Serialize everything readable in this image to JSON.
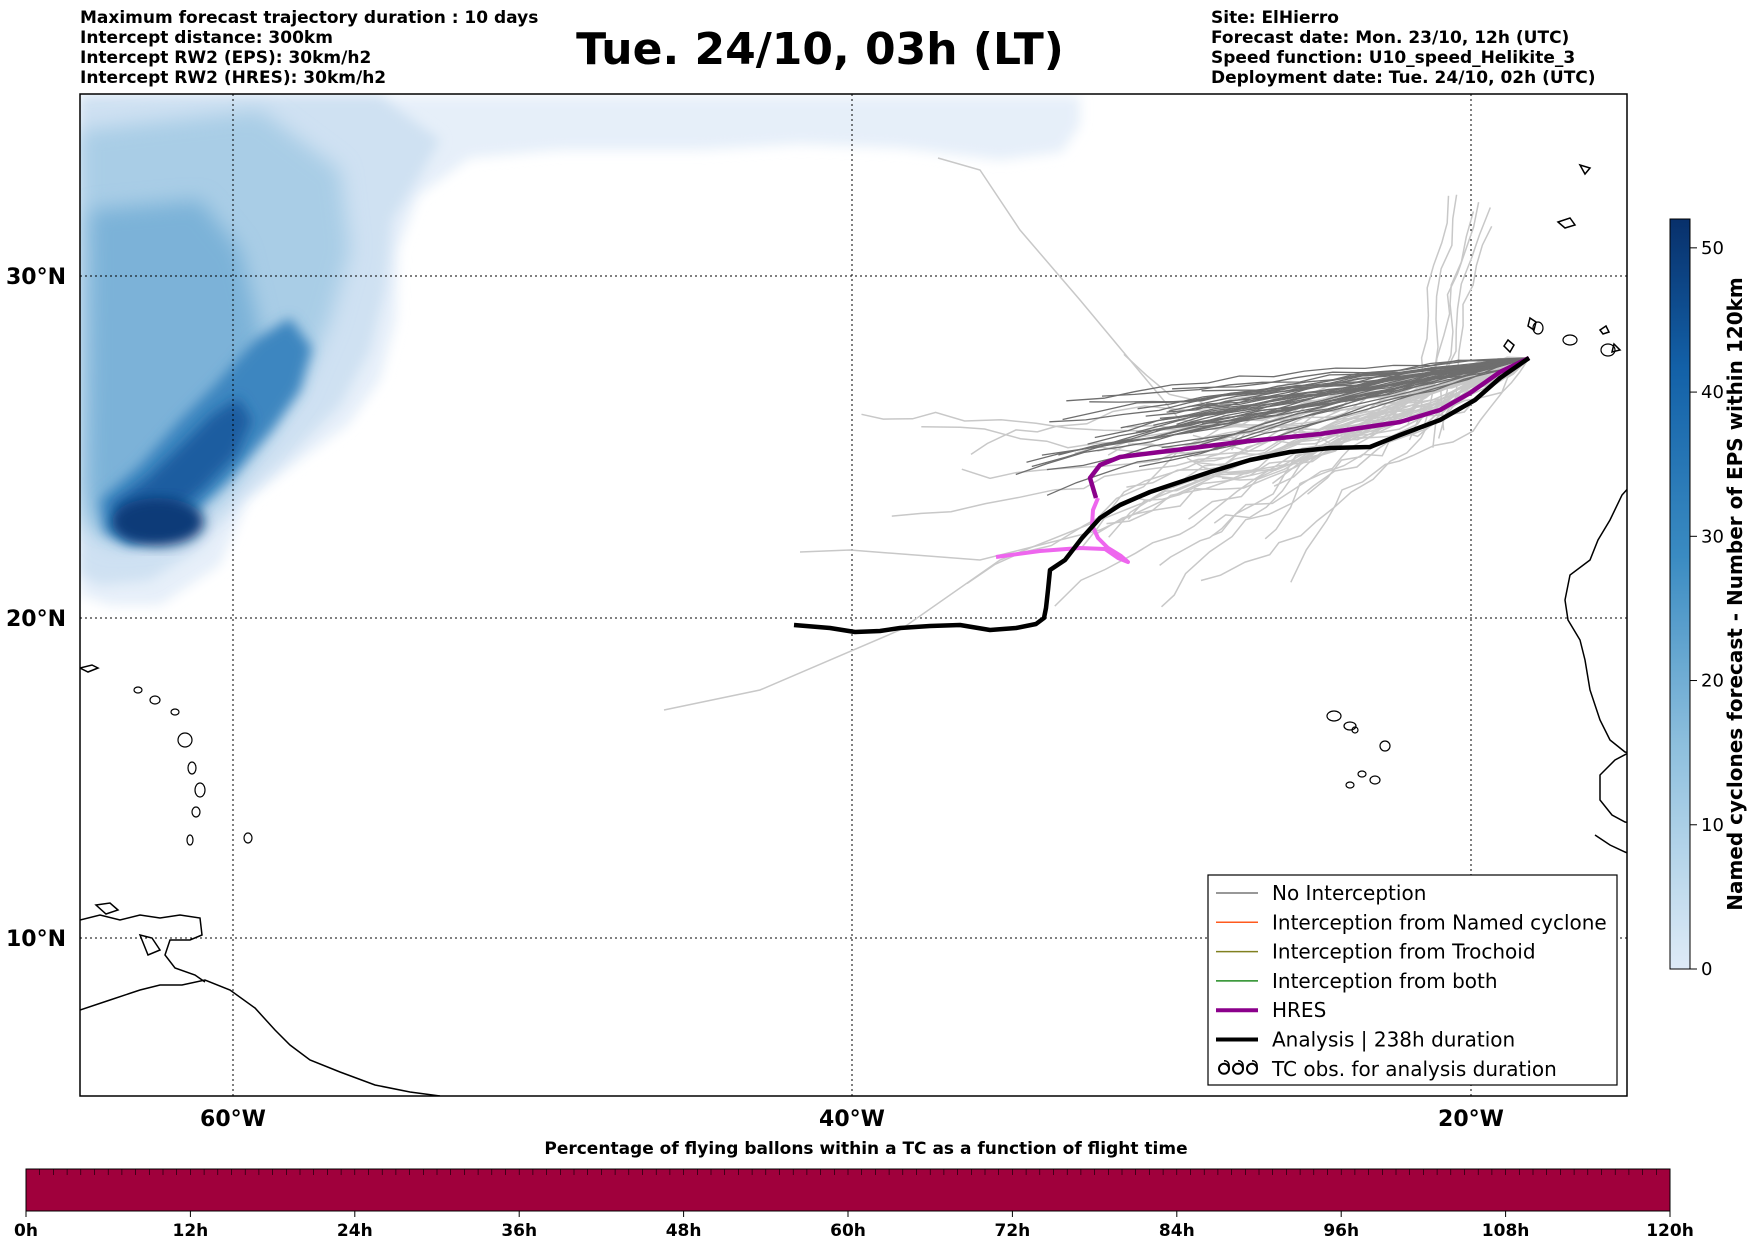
{
  "header": {
    "left_lines": [
      "Maximum forecast trajectory duration : 10 days",
      "Intercept distance: 300km",
      "Intercept RW2 (EPS):  30km/h2",
      "Intercept RW2 (HRES): 30km/h2"
    ],
    "title": "Tue. 24/10, 03h (LT)",
    "right_lines": [
      "Site: ElHierro",
      "Forecast date: Mon. 23/10, 12h (UTC)",
      "Speed function: U10_speed_Helikite_3",
      "Deployment date: Tue. 24/10, 02h (UTC)"
    ]
  },
  "map": {
    "lat_labels": [
      "30°N",
      "20°N",
      "10°N"
    ],
    "lon_labels": [
      "60°W",
      "40°W",
      "20°W"
    ],
    "colors": {
      "hres": "#8b008b",
      "hres_alt": "#ee66ee",
      "analysis": "#000000",
      "ensemble_dark": "#6e6e6e",
      "ensemble_light": "#c8c8c8",
      "density_dark": "#08306b",
      "density_light": "#deebf7"
    }
  },
  "legend": {
    "items": [
      {
        "label": "No Interception",
        "color": "#777777",
        "width": 1.5
      },
      {
        "label": "Interception from Named cyclone",
        "color": "#ff5a1e",
        "width": 1.5
      },
      {
        "label": "Interception from Trochoid",
        "color": "#808020",
        "width": 1.5
      },
      {
        "label": "Interception from both",
        "color": "#228b22",
        "width": 1.5
      },
      {
        "label": "HRES",
        "color": "#8b008b",
        "width": 4
      },
      {
        "label": "Analysis | 238h duration",
        "color": "#000000",
        "width": 4
      },
      {
        "label": "TC obs. for analysis duration",
        "color": "#000000",
        "width": 0,
        "icon": "cyclone-icon"
      }
    ]
  },
  "colorbar_right": {
    "title": "Named cyclones forecast - Number of EPS within 120km",
    "ticks": [
      "50",
      "40",
      "30",
      "20",
      "10",
      "0"
    ],
    "top_color": "#08306b",
    "bottom_color": "#deebf7"
  },
  "colorbar_bottom": {
    "title": "Percentage of flying ballons within a TC as a function of flight time",
    "ticks": [
      "0h",
      "12h",
      "24h",
      "36h",
      "48h",
      "60h",
      "72h",
      "84h",
      "96h",
      "108h",
      "120h"
    ],
    "fill_color": "#a0003c"
  }
}
